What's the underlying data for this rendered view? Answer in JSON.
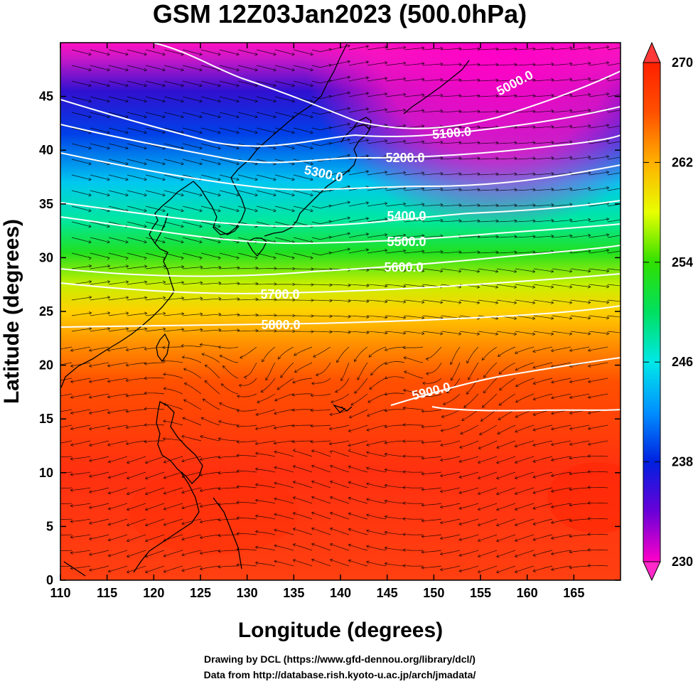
{
  "title": "GSM 12Z03Jan2023 (500.0hPa)",
  "xlabel": "Longitude (degrees)",
  "ylabel": "Latitude  (degrees)",
  "x_ticks": [
    "110",
    "115",
    "120",
    "125",
    "130",
    "135",
    "140",
    "145",
    "150",
    "155",
    "160",
    "165"
  ],
  "y_ticks": [
    "0",
    "5",
    "10",
    "15",
    "20",
    "25",
    "30",
    "35",
    "40",
    "45"
  ],
  "colorbar": {
    "min": 230,
    "max": 270,
    "labels": [
      "270",
      "262",
      "254",
      "246",
      "238",
      "230"
    ],
    "colors": [
      "#ff00c8",
      "#6a00d8",
      "#0020e0",
      "#0090ff",
      "#00e8e8",
      "#00e060",
      "#30e000",
      "#e8ff00",
      "#ffb000",
      "#ff5000",
      "#ff2000"
    ]
  },
  "contours": {
    "labels": [
      "5000.0",
      "5100.0",
      "5200.0",
      "5300.0",
      "5400.0",
      "5500.0",
      "5600.0",
      "5700.0",
      "5800.0",
      "5900.0"
    ]
  },
  "footer": {
    "line1": "Drawing by DCL (https://www.gfd-dennou.org/library/dcl/)",
    "line2": "Data from http://database.rish.kyoto-u.ac.jp/arch/jmadata/"
  }
}
